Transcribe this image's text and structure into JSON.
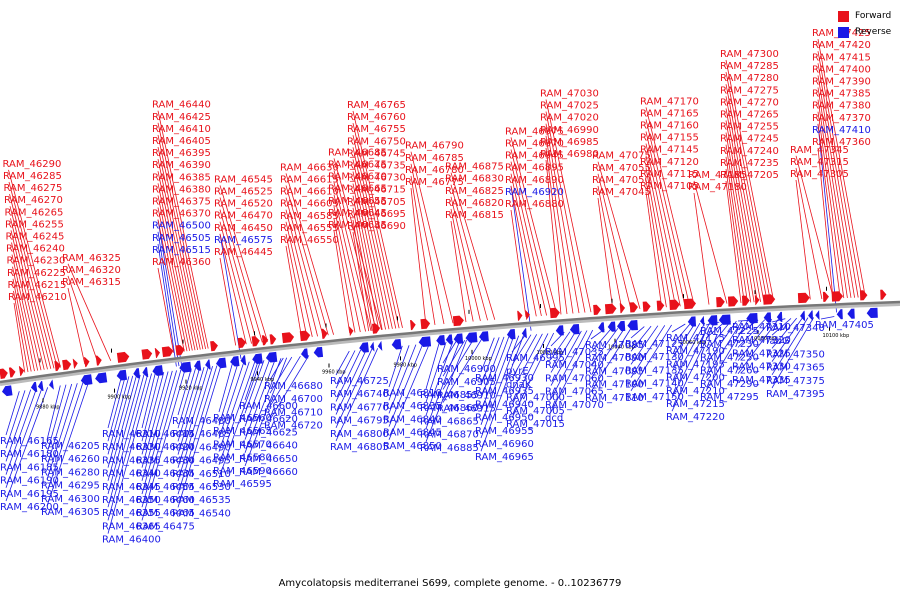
{
  "colors": {
    "forward": "#e8121b",
    "reverse": "#1a1ae6",
    "backbone": "#777777"
  },
  "legend": [
    {
      "label": "Forward",
      "color": "#e8121b"
    },
    {
      "label": "Reverse",
      "color": "#1a1ae6"
    }
  ],
  "caption": "Amycolatopsis mediterranei S699, complete genome. - 0..10236779",
  "ticks": [
    "9880 kbp",
    "9900 kbp",
    "9920 kbp",
    "9940 kbp",
    "9960 kbp",
    "9980 kbp",
    "10000 kbp",
    "10020 kbp",
    "10040 kbp",
    "10060 kbp",
    "10080 kbp",
    "10100 kbp"
  ],
  "forward_genes": [
    "RAM_46210",
    "RAM_46215",
    "RAM_46225",
    "RAM_46230",
    "RAM_46240",
    "RAM_46245",
    "RAM_46255",
    "RAM_46265",
    "RAM_46270",
    "RAM_46275",
    "RAM_46285",
    "RAM_46290",
    "RAM_46315",
    "RAM_46320",
    "RAM_46325",
    "RAM_46360",
    "RAM_46370",
    "RAM_46375",
    "RAM_46380",
    "RAM_46385",
    "RAM_46390",
    "RAM_46395",
    "RAM_46405",
    "RAM_46410",
    "RAM_46425",
    "RAM_46440",
    "RAM_46445",
    "RAM_46450",
    "RAM_46470",
    "RAM_46520",
    "RAM_46525",
    "RAM_46545",
    "RAM_46550",
    "RAM_46555",
    "RAM_46585",
    "RAM_46605",
    "RAM_46610",
    "RAM_46615",
    "RAM_46630",
    "RAM_46635",
    "RAM_46645",
    "RAM_46655",
    "RAM_46665",
    "RAM_46670",
    "RAM_46675",
    "RAM_46685",
    "RAM_46690",
    "RAM_46695",
    "RAM_46705",
    "RAM_46715",
    "RAM_46730",
    "RAM_46735",
    "RAM_46745",
    "RAM_46750",
    "RAM_46755",
    "RAM_46760",
    "RAM_46765",
    "RAM_46775",
    "RAM_46780",
    "RAM_46785",
    "RAM_46790",
    "RAM_46815",
    "RAM_46820",
    "RAM_46825",
    "RAM_46830",
    "RAM_46875",
    "RAM_46880",
    "RAM_46890",
    "RAM_46895",
    "RAM_46945",
    "RAM_46970",
    "RAM_46975",
    "RAM_46980",
    "RAM_46985",
    "RAM_46990",
    "RAM_47020",
    "RAM_47025",
    "RAM_47030",
    "RAM_47045",
    "RAM_47050",
    "RAM_47055",
    "RAM_47075",
    "RAM_47105",
    "RAM_47115",
    "RAM_47120",
    "RAM_47145",
    "RAM_47155",
    "RAM_47160",
    "RAM_47165",
    "RAM_47170",
    "RAM_47180",
    "RAM_47185",
    "RAM_47205",
    "RAM_47235",
    "RAM_47240",
    "RAM_47245",
    "RAM_47255",
    "RAM_47265",
    "RAM_47270",
    "RAM_47275",
    "RAM_47280",
    "RAM_47285",
    "RAM_47300",
    "RAM_47305",
    "RAM_47315",
    "RAM_47345",
    "RAM_47360",
    "RAM_47370",
    "RAM_47380",
    "RAM_47385",
    "RAM_47390",
    "RAM_47400",
    "RAM_47415",
    "RAM_47420",
    "RAM_47425"
  ],
  "reverse_genes_top": [
    "RAM_46500",
    "RAM_46505",
    "RAM_46515",
    "RAM_46575",
    "RAM_46920",
    "RAM_47410"
  ],
  "reverse_genes": [
    "RAM_46165",
    "RAM_46180",
    "RAM_46185",
    "RAM_46190",
    "RAM_46195",
    "RAM_46200",
    "RAM_46205",
    "RAM_46260",
    "RAM_46280",
    "RAM_46295",
    "RAM_46300",
    "RAM_46305",
    "RAM_46310",
    "RAM_46330",
    "RAM_46335",
    "RAM_46340",
    "RAM_46345",
    "RAM_46350",
    "RAM_46355",
    "RAM_46365",
    "RAM_46400",
    "RAM_46415",
    "RAM_46420",
    "RAM_46430",
    "RAM_46435",
    "RAM_46455",
    "RAM_46460",
    "RAM_46465",
    "RAM_46475",
    "RAM_46480",
    "RAM_46485",
    "RAM_46490",
    "RAM_46495",
    "RAM_46510",
    "RAM_46530",
    "RAM_46535",
    "RAM_46540",
    "RAM_46560",
    "RAM_46565",
    "RAM_46570",
    "RAM_46580",
    "RAM_46590",
    "RAM_46595",
    "RAM_46600",
    "RAM_46620",
    "RAM_46625",
    "RAM_46640",
    "RAM_46650",
    "RAM_46660",
    "RAM_46680",
    "RAM_46700",
    "RAM_46710",
    "RAM_46720",
    "RAM_46725",
    "RAM_46740",
    "RAM_46770",
    "RAM_46795",
    "RAM_46800",
    "RAM_46805",
    "RAM_46810",
    "RAM_46835",
    "RAM_46840",
    "RAM_46845",
    "RAM_46850",
    "RAM_46855",
    "RAM_46860",
    "RAM_46865",
    "RAM_46870",
    "RAM_46885",
    "RAM_46900",
    "RAM_46905",
    "RAM_46910",
    "RAM_46915",
    "RAM_46930",
    "RAM_46935",
    "RAM_46940",
    "RAM_46950",
    "RAM_46955",
    "RAM_46960",
    "RAM_46965",
    "RAM_46995",
    "pyrE",
    "dnaK",
    "RAM_47000",
    "RAM_47005",
    "RAM_47015",
    "RAM_47035",
    "RAM_47040",
    "RAM_47060",
    "RAM_47065",
    "RAM_47070",
    "dcd",
    "RAM_47085",
    "RAM_47090",
    "RAM_47095",
    "RAM_47100",
    "RAM_47110",
    "RAM_47125",
    "RAM_47130",
    "RAM_47135",
    "RAM_47140",
    "RAM_47150",
    "RAM_47175",
    "RAM_47190",
    "RAM_47195",
    "RAM_47200",
    "RAM_47210",
    "RAM_47215",
    "RAM_47220",
    "RAM_47225",
    "RAM_47230",
    "RAM_47250",
    "RAM_47260",
    "RAM_47290",
    "RAM_47295",
    "RAM_47310",
    "RAM_47320",
    "RAM_47325",
    "RAM_47330",
    "RAM_47335",
    "RAM_47340",
    "fabG",
    "RAM_47350",
    "RAM_47365",
    "RAM_47375",
    "RAM_47395",
    "RAM_47405"
  ]
}
